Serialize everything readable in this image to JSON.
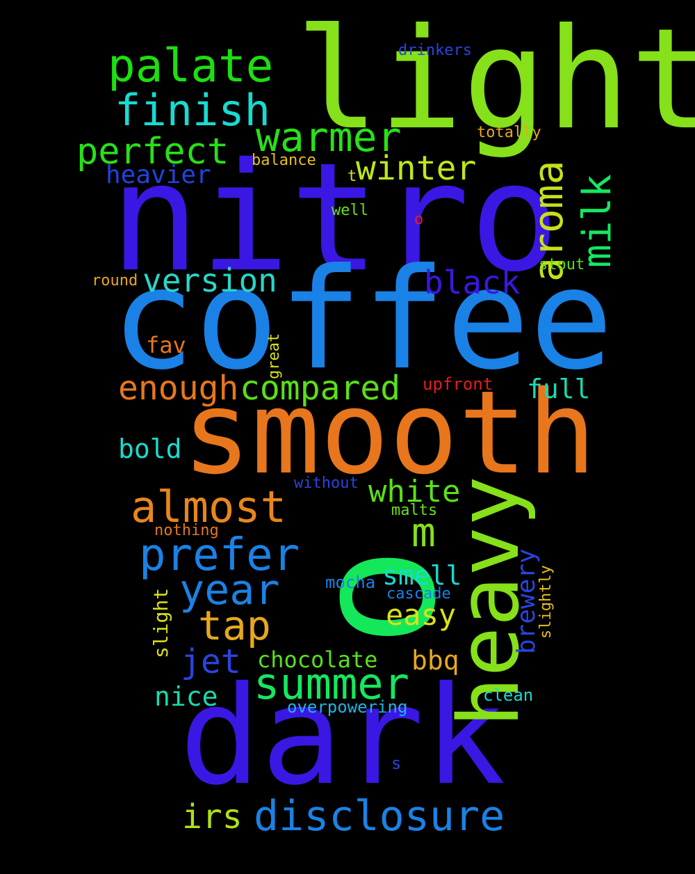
{
  "words": {
    "nitro": "nitro",
    "coffee": "coffee",
    "light": "light",
    "smooth": "smooth",
    "dark": "dark",
    "heavy": "heavy",
    "o_green": "o",
    "palate": "palate",
    "finish": "finish",
    "warmer": "warmer",
    "perfect": "perfect",
    "winter": "winter",
    "heavier": "heavier",
    "aroma": "aroma",
    "milk": "milk",
    "version": "version",
    "black": "black",
    "fav": "fav",
    "great": "great",
    "enough": "enough",
    "compared": "compared",
    "full": "full",
    "upfront": "upfront",
    "bold": "bold",
    "without": "without",
    "white": "white",
    "almost": "almost",
    "malts": "malts",
    "m": "m",
    "nothing": "nothing",
    "prefer": "prefer",
    "brewery": "brewery",
    "slightly": "slightly",
    "year": "year",
    "smell": "smell",
    "mocha": "mocha",
    "cascade": "cascade",
    "easy": "easy",
    "slight": "slight",
    "tap": "tap",
    "jet": "jet",
    "chocolate": "chocolate",
    "bbq": "bbq",
    "summer": "summer",
    "nice": "nice",
    "clean": "clean",
    "overpowering": "overpowering",
    "s": "s",
    "irs": "irs",
    "disclosure": "disclosure",
    "drinkers": "drinkers",
    "totally": "totally",
    "balance": "balance",
    "t": "t",
    "well": "well",
    "o_red": "o",
    "stout": "stout",
    "round": "round"
  },
  "colors": {
    "background": "#000000"
  }
}
